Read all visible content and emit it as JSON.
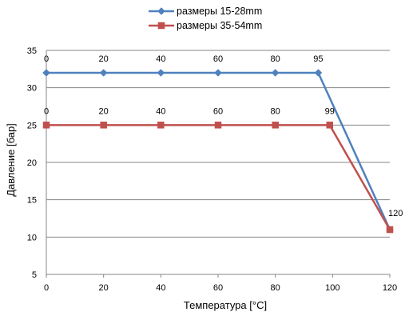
{
  "chart_data": {
    "type": "line",
    "xlabel": "Температура [°C]",
    "ylabel": "Давление [бар]",
    "xlim": [
      0,
      120
    ],
    "ylim": [
      5,
      35
    ],
    "xticks": [
      0,
      20,
      40,
      60,
      80,
      100,
      120
    ],
    "yticks": [
      5,
      10,
      15,
      20,
      25,
      30,
      35
    ],
    "grid": "horizontal",
    "legend_position": "top",
    "series": [
      {
        "name": "размеры    15-28mm",
        "color": "#4F81BD",
        "marker": "diamond",
        "x": [
          0,
          20,
          40,
          60,
          80,
          95,
          120
        ],
        "y": [
          32,
          32,
          32,
          32,
          32,
          32,
          11
        ],
        "labels": [
          "0",
          "20",
          "40",
          "60",
          "80",
          "95",
          "120"
        ]
      },
      {
        "name": "размеры    35-54mm",
        "color": "#C0504D",
        "marker": "square",
        "x": [
          0,
          20,
          40,
          60,
          80,
          99,
          120
        ],
        "y": [
          25,
          25,
          25,
          25,
          25,
          25,
          11
        ],
        "labels": [
          "0",
          "20",
          "40",
          "60",
          "80",
          "99",
          ""
        ]
      }
    ]
  }
}
